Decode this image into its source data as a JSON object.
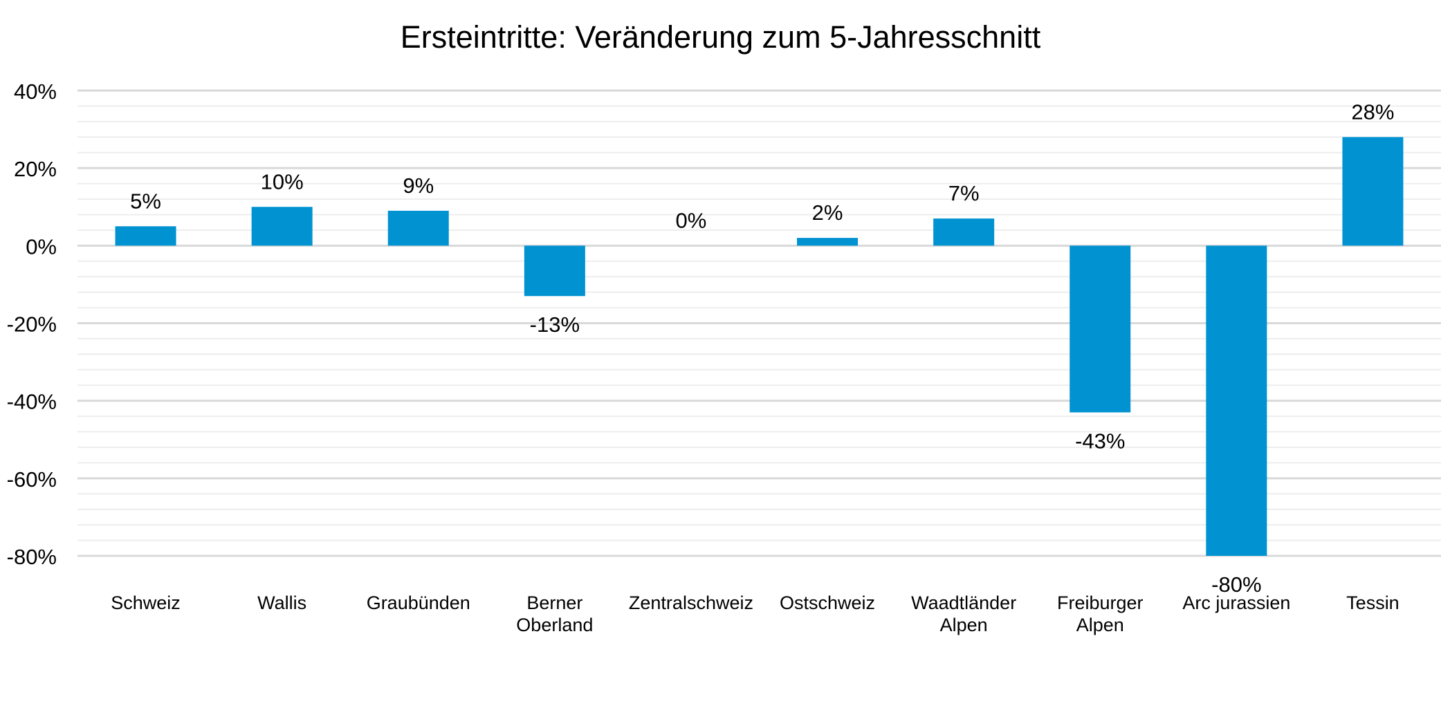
{
  "chart_data": {
    "type": "bar",
    "title": "Ersteintritte: Veränderung zum 5-Jahresschnitt",
    "categories": [
      [
        "Schweiz"
      ],
      [
        "Wallis"
      ],
      [
        "Graubünden"
      ],
      [
        "Berner",
        "Oberland"
      ],
      [
        "Zentralschweiz"
      ],
      [
        "Ostschweiz"
      ],
      [
        "Waadtländer",
        "Alpen"
      ],
      [
        "Freiburger",
        "Alpen"
      ],
      [
        "Arc jurassien"
      ],
      [
        "Tessin"
      ]
    ],
    "values": [
      5,
      10,
      9,
      -13,
      0,
      2,
      7,
      -43,
      -80,
      28
    ],
    "data_labels": [
      "5%",
      "10%",
      "9%",
      "-13%",
      "0%",
      "2%",
      "7%",
      "-43%",
      "-80%",
      "28%"
    ],
    "y_ticks": [
      40,
      20,
      0,
      -20,
      -40,
      -60,
      -80
    ],
    "y_tick_labels": [
      "40%",
      "20%",
      "0%",
      "-20%",
      "-40%",
      "-60%",
      "-80%"
    ],
    "ylim": [
      -80,
      40
    ],
    "minor_grid_step": 4,
    "grid": true,
    "legend": "none",
    "xlabel": "",
    "ylabel": "",
    "colors": {
      "bar": "#0092D1",
      "major_grid": "#d9d9d9",
      "minor_grid": "#ededed",
      "text": "#000000"
    }
  }
}
